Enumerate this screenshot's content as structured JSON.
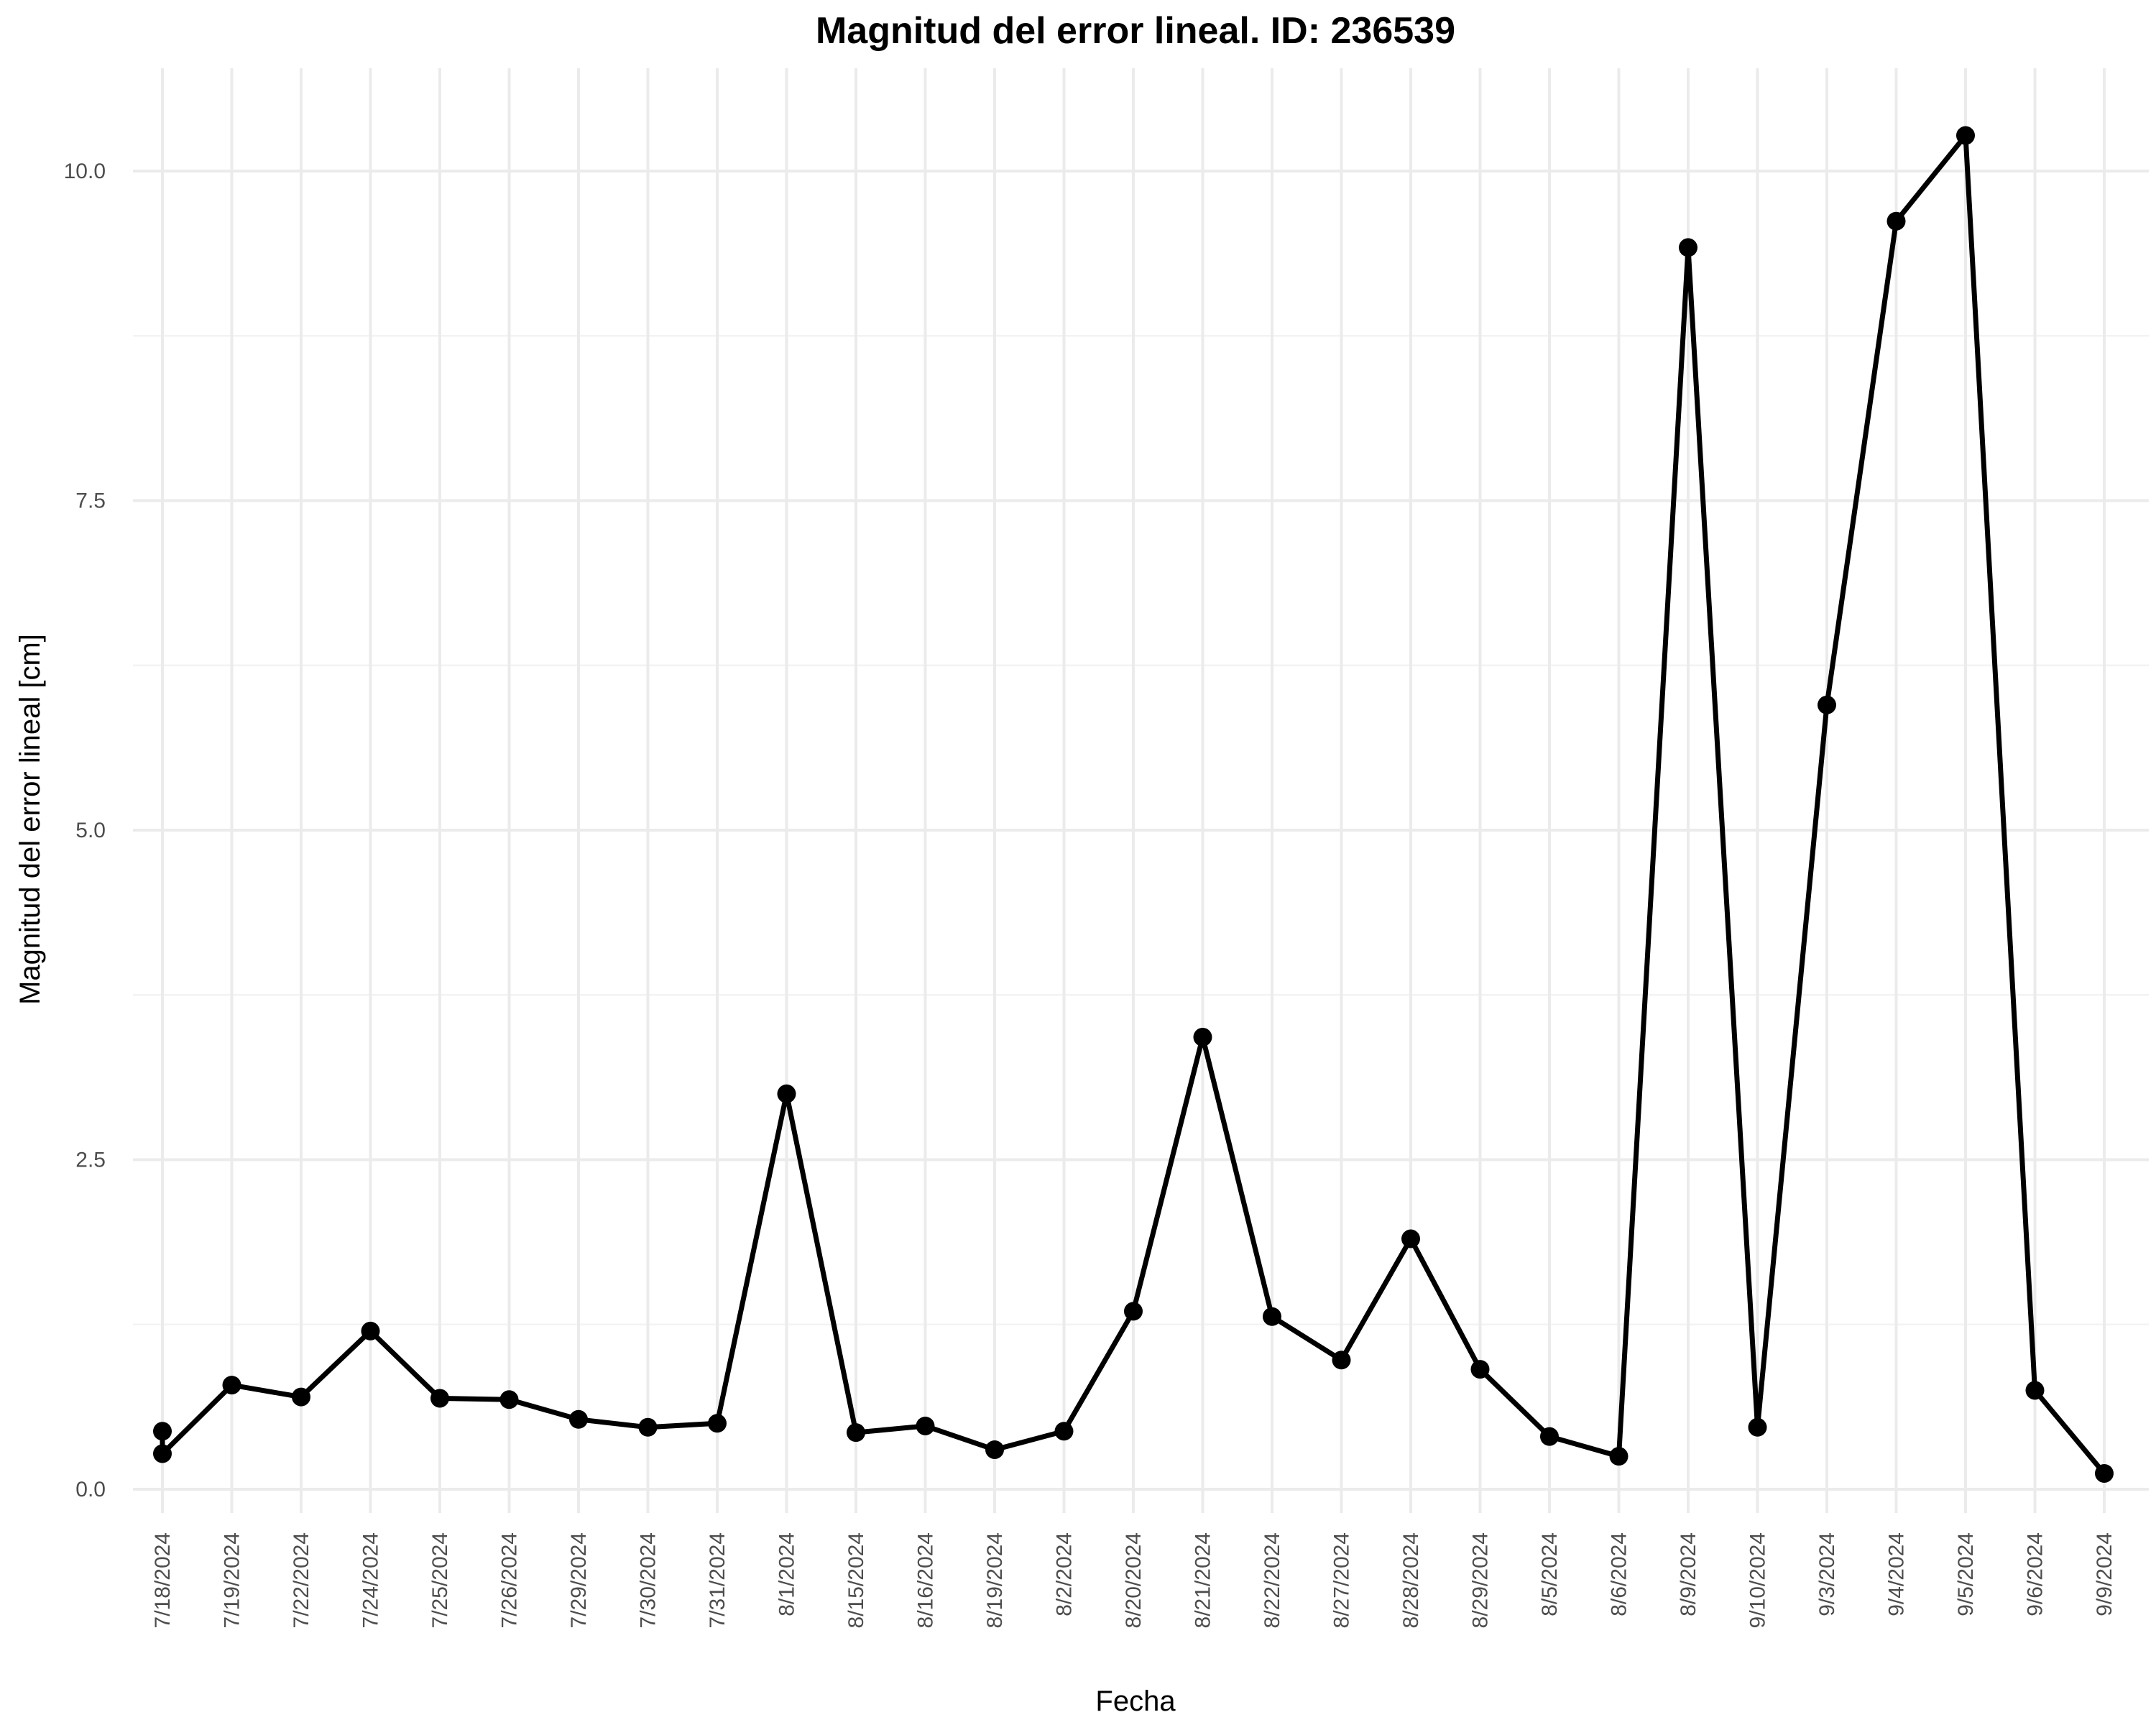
{
  "chart_data": {
    "type": "line",
    "title": "Magnitud del error lineal. ID: 236539",
    "xlabel": "Fecha",
    "ylabel": "Magnitud del error lineal [cm]",
    "categories": [
      "7/18/2024",
      "7/19/2024",
      "7/22/2024",
      "7/24/2024",
      "7/25/2024",
      "7/26/2024",
      "7/29/2024",
      "7/30/2024",
      "7/31/2024",
      "8/1/2024",
      "8/15/2024",
      "8/16/2024",
      "8/19/2024",
      "8/2/2024",
      "8/20/2024",
      "8/21/2024",
      "8/22/2024",
      "8/27/2024",
      "8/28/2024",
      "8/29/2024",
      "8/5/2024",
      "8/6/2024",
      "8/9/2024",
      "9/10/2024",
      "9/3/2024",
      "9/4/2024",
      "9/5/2024",
      "9/6/2024",
      "9/9/2024"
    ],
    "points": [
      {
        "x": "7/18/2024",
        "y": 0.44
      },
      {
        "x": "7/18/2024",
        "y": 0.27
      },
      {
        "x": "7/19/2024",
        "y": 0.79
      },
      {
        "x": "7/22/2024",
        "y": 0.7
      },
      {
        "x": "7/24/2024",
        "y": 1.2
      },
      {
        "x": "7/25/2024",
        "y": 0.69
      },
      {
        "x": "7/26/2024",
        "y": 0.68
      },
      {
        "x": "7/29/2024",
        "y": 0.53
      },
      {
        "x": "7/30/2024",
        "y": 0.47
      },
      {
        "x": "7/31/2024",
        "y": 0.5
      },
      {
        "x": "8/1/2024",
        "y": 3.0
      },
      {
        "x": "8/15/2024",
        "y": 0.43
      },
      {
        "x": "8/16/2024",
        "y": 0.48
      },
      {
        "x": "8/19/2024",
        "y": 0.3
      },
      {
        "x": "8/2/2024",
        "y": 0.44
      },
      {
        "x": "8/20/2024",
        "y": 1.35
      },
      {
        "x": "8/21/2024",
        "y": 3.43
      },
      {
        "x": "8/22/2024",
        "y": 1.31
      },
      {
        "x": "8/27/2024",
        "y": 0.98
      },
      {
        "x": "8/28/2024",
        "y": 1.9
      },
      {
        "x": "8/29/2024",
        "y": 0.91
      },
      {
        "x": "8/5/2024",
        "y": 0.4
      },
      {
        "x": "8/6/2024",
        "y": 0.25
      },
      {
        "x": "8/9/2024",
        "y": 9.42
      },
      {
        "x": "9/10/2024",
        "y": 0.47
      },
      {
        "x": "9/3/2024",
        "y": 5.95
      },
      {
        "x": "9/4/2024",
        "y": 9.62
      },
      {
        "x": "9/5/2024",
        "y": 10.27
      },
      {
        "x": "9/6/2024",
        "y": 0.75
      },
      {
        "x": "9/9/2024",
        "y": 0.12
      }
    ],
    "yticks": [
      "0.0",
      "2.5",
      "5.0",
      "7.5",
      "10.0"
    ],
    "ytick_values": [
      0,
      2.5,
      5,
      7.5,
      10
    ],
    "ylim": [
      -0.18,
      10.78
    ],
    "grid": true,
    "legend": "none",
    "colors": {
      "line": "#000000",
      "grid": "#ebebeb",
      "background": "#ffffff"
    }
  }
}
